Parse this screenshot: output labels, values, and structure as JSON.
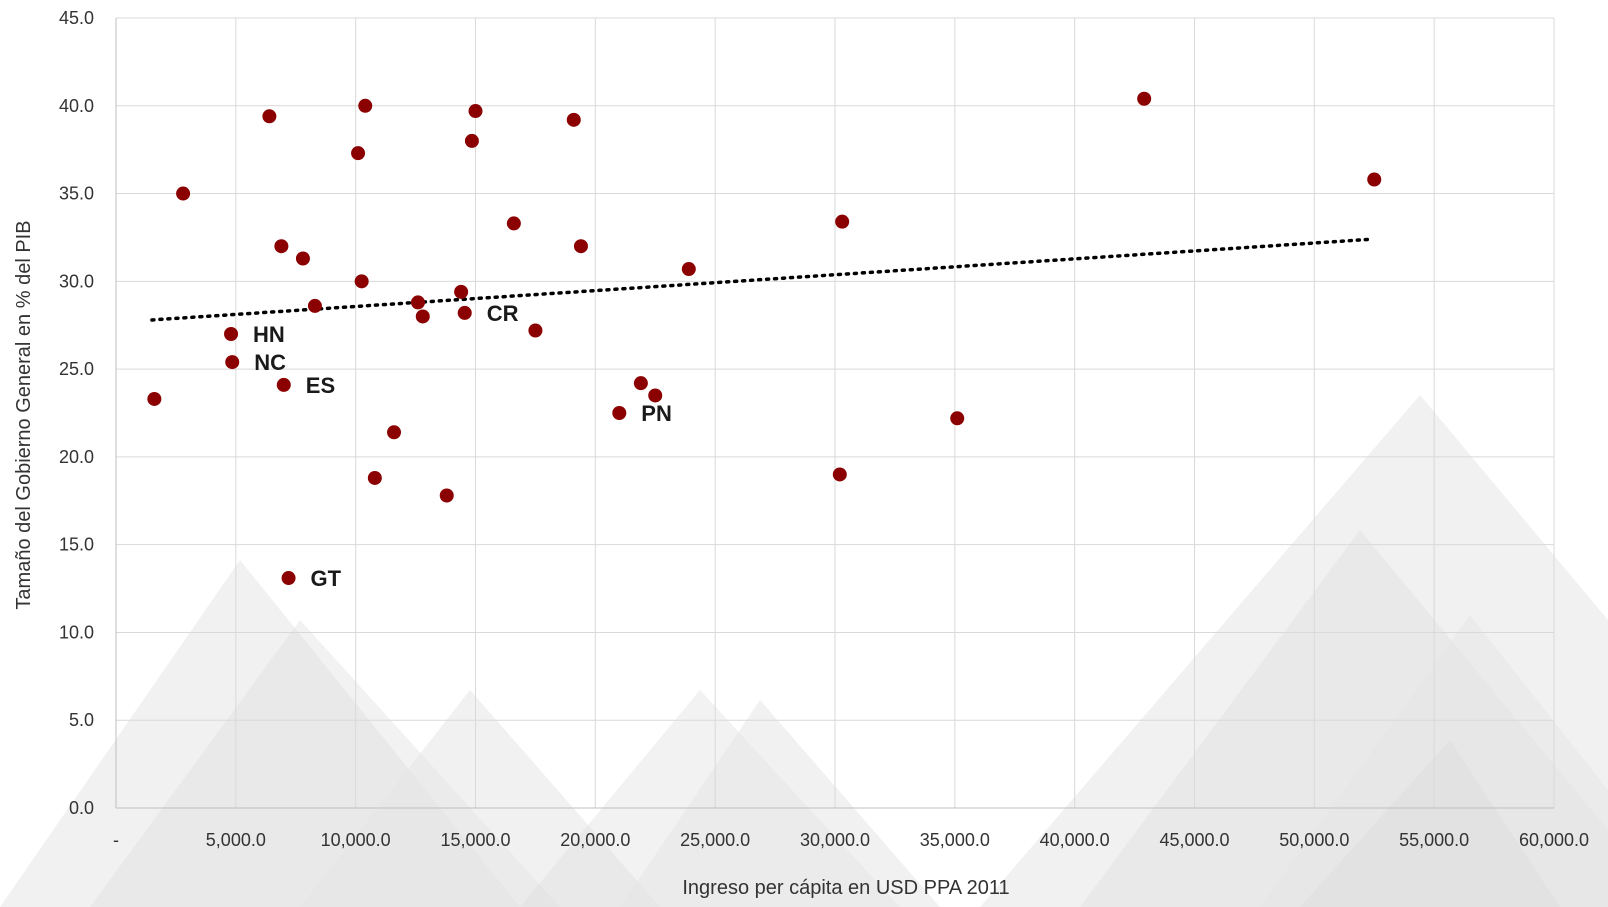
{
  "chart_data": {
    "type": "scatter",
    "title": "",
    "xlabel": "Ingreso per cápita en USD PPA 2011",
    "ylabel": "Tamaño del Gobierno General en % del PIB",
    "xlim": [
      0,
      60000
    ],
    "ylim": [
      0,
      45
    ],
    "x_ticks": [
      "-",
      "5,000.0",
      "10,000.0",
      "15,000.0",
      "20,000.0",
      "25,000.0",
      "30,000.0",
      "35,000.0",
      "40,000.0",
      "45,000.0",
      "50,000.0",
      "55,000.0",
      "60,000.0"
    ],
    "y_ticks": [
      "0.0",
      "5.0",
      "10.0",
      "15.0",
      "20.0",
      "25.0",
      "30.0",
      "35.0",
      "40.0",
      "45.0"
    ],
    "grid": true,
    "legend": "none",
    "colors": {
      "points": "#8b0000",
      "trendline": "#000000",
      "grid": "#d9d9d9"
    },
    "trendline": {
      "style": "dotted",
      "x": [
        1500,
        52400
      ],
      "y": [
        27.8,
        32.4
      ]
    },
    "points": [
      {
        "x": 1600,
        "y": 23.3
      },
      {
        "x": 2800,
        "y": 35.0
      },
      {
        "x": 4800,
        "y": 27.0,
        "label": "HN"
      },
      {
        "x": 4850,
        "y": 25.4,
        "label": "NC"
      },
      {
        "x": 6400,
        "y": 39.4
      },
      {
        "x": 6900,
        "y": 32.0
      },
      {
        "x": 7000,
        "y": 24.1,
        "label": "ES"
      },
      {
        "x": 7200,
        "y": 13.1,
        "label": "GT"
      },
      {
        "x": 7800,
        "y": 31.3
      },
      {
        "x": 8300,
        "y": 28.6
      },
      {
        "x": 10100,
        "y": 37.3
      },
      {
        "x": 10250,
        "y": 30.0
      },
      {
        "x": 10400,
        "y": 40.0
      },
      {
        "x": 10800,
        "y": 18.8
      },
      {
        "x": 11600,
        "y": 21.4
      },
      {
        "x": 12600,
        "y": 28.8
      },
      {
        "x": 12800,
        "y": 28.0
      },
      {
        "x": 13800,
        "y": 17.8
      },
      {
        "x": 14400,
        "y": 29.4
      },
      {
        "x": 14550,
        "y": 28.2,
        "label": "CR"
      },
      {
        "x": 14850,
        "y": 38.0
      },
      {
        "x": 15000,
        "y": 39.7
      },
      {
        "x": 16600,
        "y": 33.3
      },
      {
        "x": 17500,
        "y": 27.2
      },
      {
        "x": 19100,
        "y": 39.2
      },
      {
        "x": 19400,
        "y": 32.0
      },
      {
        "x": 21000,
        "y": 22.5,
        "label": "PN"
      },
      {
        "x": 21900,
        "y": 24.2
      },
      {
        "x": 22500,
        "y": 23.5
      },
      {
        "x": 23900,
        "y": 30.7
      },
      {
        "x": 30200,
        "y": 19.0
      },
      {
        "x": 30300,
        "y": 33.4
      },
      {
        "x": 35100,
        "y": 22.2
      },
      {
        "x": 42900,
        "y": 40.4
      },
      {
        "x": 52500,
        "y": 35.8
      }
    ]
  }
}
